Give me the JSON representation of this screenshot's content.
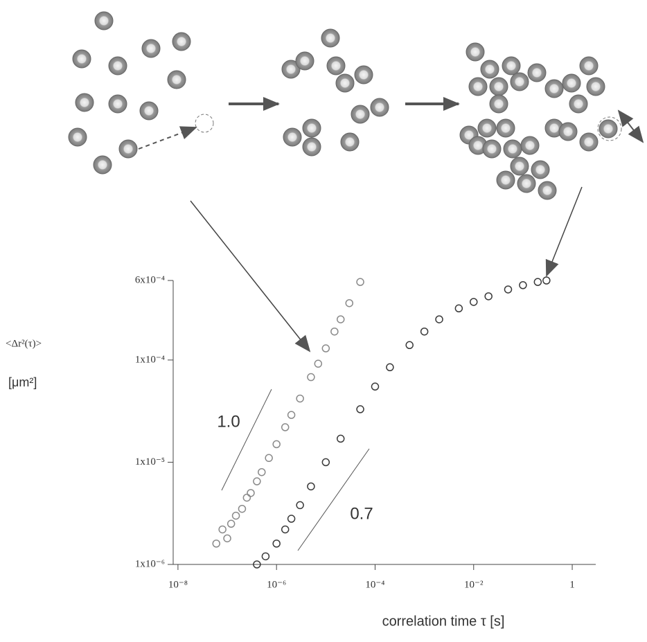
{
  "chart_data": {
    "type": "scatter",
    "x_label": "correlation time τ [s]",
    "y_label": "<Δr²(τ)>",
    "y_label_unit": "[μm²]",
    "xscale": "log",
    "yscale": "log",
    "xlim": [
      8e-09,
      3
    ],
    "ylim": [
      1e-06,
      0.0006
    ],
    "xticks": [
      {
        "value": 1e-08,
        "label": "10⁻⁸"
      },
      {
        "value": 1e-06,
        "label": "10⁻⁶"
      },
      {
        "value": 0.0001,
        "label": "10⁻⁴"
      },
      {
        "value": 0.01,
        "label": "10⁻²"
      },
      1
    ],
    "yticks": [
      {
        "value": 1e-06,
        "label": "1x10⁻⁶"
      },
      {
        "value": 1e-05,
        "label": "1x10⁻⁵"
      },
      {
        "value": 0.0001,
        "label": "1x10⁻⁴"
      },
      {
        "value": 0.0006,
        "label": "6x10⁻⁴"
      }
    ],
    "annotations": [
      "1.0",
      "0.7"
    ],
    "series": [
      {
        "color": "#8a8a8a",
        "x": [
          6e-08,
          8e-08,
          1e-07,
          1.2e-07,
          1.5e-07,
          2e-07,
          2.5e-07,
          3e-07,
          4e-07,
          5e-07,
          7e-07,
          1e-06,
          1.5e-06,
          2e-06,
          3e-06,
          5e-06,
          7e-06,
          1e-05,
          1.5e-05,
          2e-05,
          3e-05,
          5e-05
        ],
        "values": [
          1.6e-06,
          2.2e-06,
          1.8e-06,
          2.5e-06,
          3e-06,
          3.5e-06,
          4.5e-06,
          5e-06,
          6.5e-06,
          8e-06,
          1.1e-05,
          1.5e-05,
          2.2e-05,
          2.9e-05,
          4.2e-05,
          6.8e-05,
          9.2e-05,
          0.00013,
          0.00019,
          0.00025,
          0.00036,
          0.00058
        ]
      },
      {
        "color": "#3a3a3a",
        "x": [
          4e-07,
          6e-07,
          1e-06,
          1.5e-06,
          2e-06,
          3e-06,
          5e-06,
          1e-05,
          2e-05,
          5e-05,
          0.0001,
          0.0002,
          0.0005,
          0.001,
          0.002,
          0.005,
          0.01,
          0.02,
          0.05,
          0.1,
          0.2,
          0.3
        ],
        "values": [
          1e-06,
          1.2e-06,
          1.6e-06,
          2.2e-06,
          2.8e-06,
          3.8e-06,
          5.8e-06,
          1e-05,
          1.7e-05,
          3.3e-05,
          5.5e-05,
          8.5e-05,
          0.00014,
          0.00019,
          0.00025,
          0.00032,
          0.00037,
          0.00042,
          0.00049,
          0.00054,
          0.00058,
          0.0006
        ]
      }
    ]
  }
}
